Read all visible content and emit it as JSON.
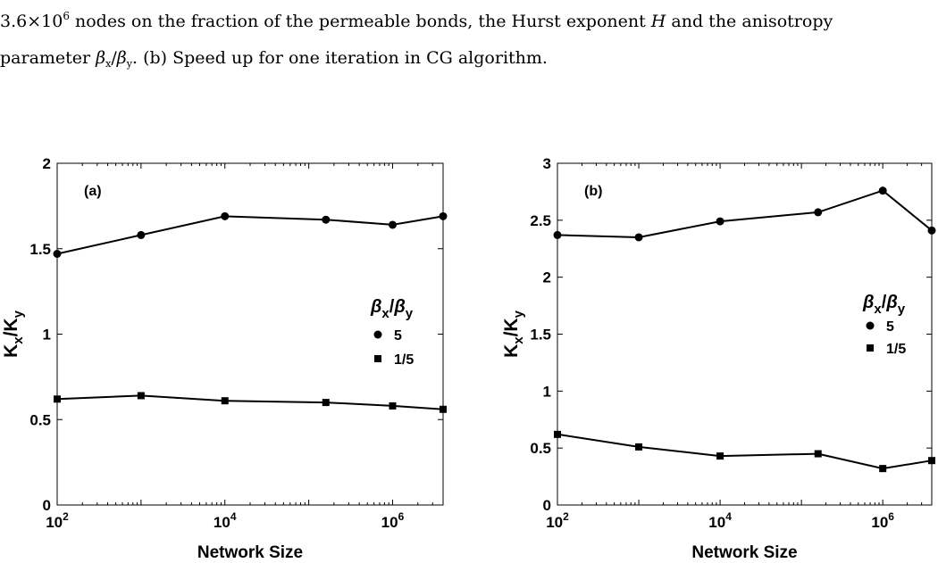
{
  "caption": {
    "line1_prefix": "3.6×10",
    "line1_exp": "6",
    "line1_mid": " nodes on the fraction of the permeable bonds, the Hurst exponent ",
    "line1_H": "H",
    "line1_end": " and the anisotropy",
    "line2_start": "parameter ",
    "line2_beta_x": "β",
    "line2_x_sub": "x",
    "line2_slash": "/",
    "line2_beta_y": "β",
    "line2_y_sub": "y",
    "line2_end": ". (b) Speed up for one iteration in CG algorithm."
  },
  "colors": {
    "line": "#000000",
    "axis": "#000000",
    "background": "#ffffff"
  },
  "chart_data": [
    {
      "type": "line",
      "panel_label": "(a)",
      "xlabel": "Network Size",
      "ylabel_main": "K",
      "ylabel_sub1": "x",
      "ylabel_slash": "/K",
      "ylabel_sub2": "y",
      "xscale": "log",
      "xlim": [
        100,
        4000000
      ],
      "ylim": [
        0,
        2
      ],
      "x_tick_values": [
        100,
        10000,
        1000000
      ],
      "x_tick_base": "10",
      "x_tick_exponents": [
        "2",
        "4",
        "6"
      ],
      "y_ticks": [
        0,
        0.5,
        1,
        1.5,
        2
      ],
      "y_tick_labels": [
        "0",
        "0.5",
        "1",
        "1.5",
        "2"
      ],
      "legend_title_beta": "β",
      "legend_title_x": "x",
      "legend_title_slash": "/",
      "legend_title_y": "y",
      "legend_placement": "right",
      "series": [
        {
          "name": "5",
          "marker": "circle",
          "x": [
            100,
            1000,
            10000,
            160000,
            1000000,
            4000000
          ],
          "y": [
            1.47,
            1.58,
            1.69,
            1.67,
            1.64,
            1.69
          ]
        },
        {
          "name": "1/5",
          "marker": "square",
          "x": [
            100,
            1000,
            10000,
            160000,
            1000000,
            4000000
          ],
          "y": [
            0.62,
            0.64,
            0.61,
            0.6,
            0.58,
            0.56
          ]
        }
      ]
    },
    {
      "type": "line",
      "panel_label": "(b)",
      "xlabel": "Network Size",
      "ylabel_main": "K",
      "ylabel_sub1": "x",
      "ylabel_slash": "/K",
      "ylabel_sub2": "y",
      "xscale": "log",
      "xlim": [
        100,
        4000000
      ],
      "ylim": [
        0,
        3
      ],
      "x_tick_values": [
        100,
        10000,
        1000000
      ],
      "x_tick_base": "10",
      "x_tick_exponents": [
        "2",
        "4",
        "6"
      ],
      "y_ticks": [
        0,
        0.5,
        1,
        1.5,
        2,
        2.5,
        3
      ],
      "y_tick_labels": [
        "0",
        "0.5",
        "1",
        "1.5",
        "2",
        "2.5",
        "3"
      ],
      "legend_title_beta": "β",
      "legend_title_x": "x",
      "legend_title_slash": "/",
      "legend_title_y": "y",
      "legend_placement": "right",
      "series": [
        {
          "name": "5",
          "marker": "circle",
          "x": [
            100,
            1000,
            10000,
            160000,
            1000000,
            4000000
          ],
          "y": [
            2.37,
            2.35,
            2.49,
            2.57,
            2.76,
            2.41
          ]
        },
        {
          "name": "1/5",
          "marker": "square",
          "x": [
            100,
            1000,
            10000,
            160000,
            1000000,
            4000000
          ],
          "y": [
            0.62,
            0.51,
            0.43,
            0.45,
            0.32,
            0.39
          ]
        }
      ]
    }
  ]
}
